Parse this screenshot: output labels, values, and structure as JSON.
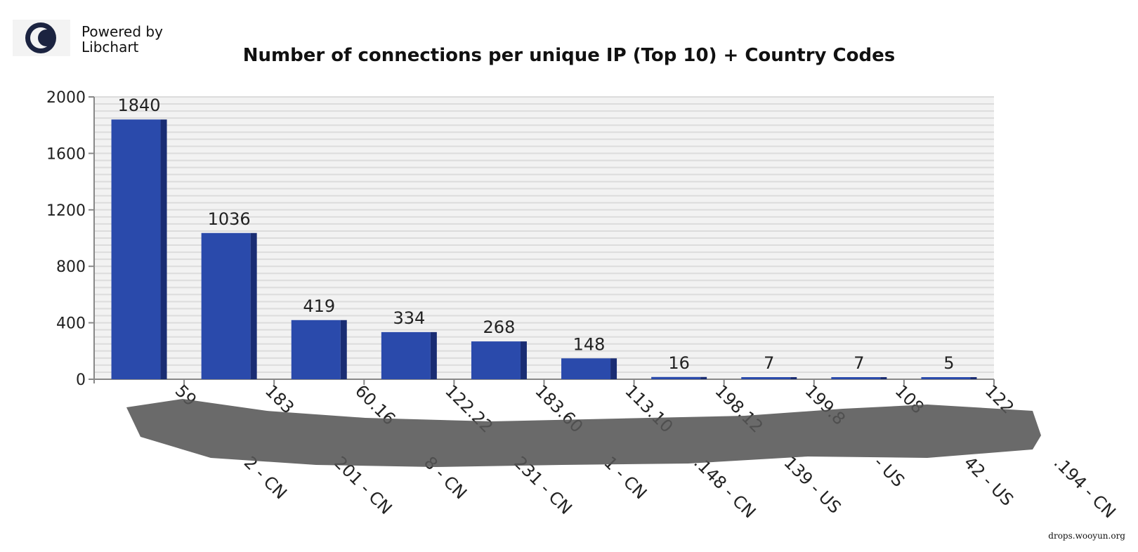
{
  "logo": {
    "line1": "Powered by",
    "line2": "Libchart"
  },
  "watermark": "drops.wooyun.org",
  "chart_data": {
    "type": "bar",
    "title": "Number of connections per unique IP (Top 10) + Country Codes",
    "xlabel": "",
    "ylabel": "",
    "ylim": [
      0,
      2000
    ],
    "yticks": [
      0,
      400,
      800,
      1200,
      1600,
      2000
    ],
    "grid": true,
    "categories_head": [
      "59",
      "183",
      "60.16",
      "122.22",
      "183.60",
      "113.10",
      "198.12",
      "199.8",
      "108",
      "122"
    ],
    "categories_tail": [
      "2 - CN",
      "201 - CN",
      "8 - CN",
      "231 - CN",
      "1 - CN",
      ".148 - CN",
      "139 - US",
      "- US",
      "42 - US",
      ".194 - CN"
    ],
    "values": [
      1840,
      1036,
      419,
      334,
      268,
      148,
      16,
      7,
      7,
      5
    ],
    "colors": {
      "bar": "#2a4aab",
      "bar_side": "#1a2d73",
      "grid": "#dcdcdc",
      "plot_bg": "#f2f2f2",
      "redaction": "#555555"
    }
  }
}
